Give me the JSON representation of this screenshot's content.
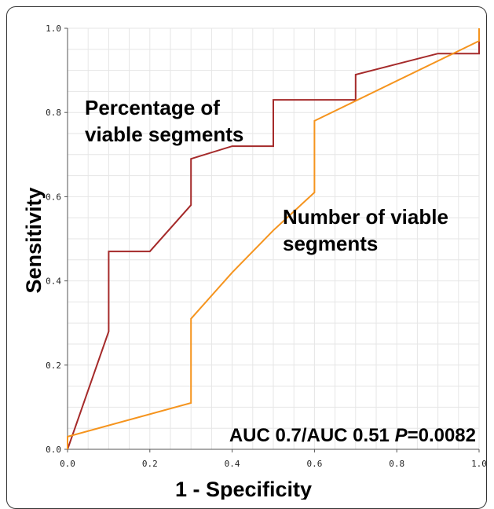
{
  "chart_data": {
    "type": "line",
    "title": "",
    "xlabel": "1 - Specificity",
    "ylabel": "Sensitivity",
    "xlim": [
      0,
      1
    ],
    "ylim": [
      0,
      1
    ],
    "x_ticks": [
      "0.0",
      "0.2",
      "0.4",
      "0.6",
      "0.8",
      "1.0"
    ],
    "y_ticks": [
      "0.0",
      "0.2",
      "0.4",
      "0.6",
      "0.8",
      "1.0"
    ],
    "grid": true,
    "series": [
      {
        "name": "Percentage of viable segments",
        "color": "#a52a2a",
        "x": [
          0.0,
          0.1,
          0.1,
          0.2,
          0.3,
          0.3,
          0.4,
          0.5,
          0.5,
          0.7,
          0.7,
          0.9,
          1.0,
          1.0
        ],
        "y": [
          0.0,
          0.28,
          0.47,
          0.47,
          0.58,
          0.69,
          0.72,
          0.72,
          0.83,
          0.83,
          0.89,
          0.94,
          0.94,
          1.0
        ]
      },
      {
        "name": "Number of viable segments",
        "color": "#f5941e",
        "x": [
          0.0,
          0.0,
          0.3,
          0.3,
          0.4,
          0.5,
          0.6,
          0.6,
          1.0,
          1.0
        ],
        "y": [
          0.0,
          0.03,
          0.11,
          0.31,
          0.42,
          0.52,
          0.61,
          0.78,
          0.97,
          1.0
        ]
      }
    ],
    "annotations": {
      "series1_label_line1": "Percentage of",
      "series1_label_line2": "viable segments",
      "series2_label_line1": "Number of viable",
      "series2_label_line2": "segments",
      "auc_text_prefix": "AUC 0.7/AUC 0.51 ",
      "auc_p": "P",
      "auc_value": "=0.0082"
    }
  }
}
